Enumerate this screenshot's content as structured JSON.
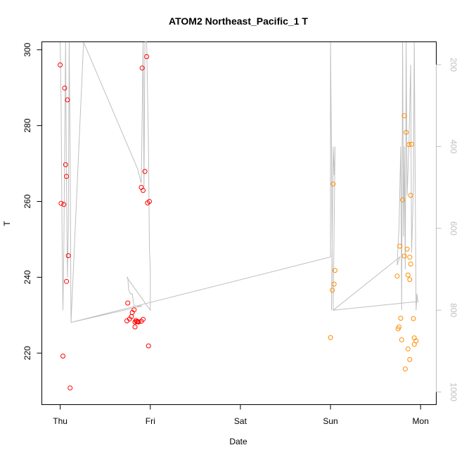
{
  "chart_data": {
    "type": "scatter",
    "title": "ATOM2 Northeast_Pacific_1 T",
    "xlabel": "Date",
    "ylabel": "T",
    "x_unit": "days since Thursday 00:00",
    "xlim": [
      -0.2,
      4.17
    ],
    "ylim": [
      206.5,
      302.0
    ],
    "x_ticks": [
      {
        "value": 0,
        "label": "Thu"
      },
      {
        "value": 1,
        "label": "Fri"
      },
      {
        "value": 2,
        "label": "Sat"
      },
      {
        "value": 3,
        "label": "Sun"
      },
      {
        "value": 4,
        "label": "Mon"
      }
    ],
    "y_ticks": [
      220,
      240,
      260,
      280,
      300
    ],
    "right_axis": {
      "lim": [
        1030,
        145
      ],
      "ticks": [
        200,
        400,
        600,
        800,
        1000
      ],
      "color": "#bfbfbf"
    },
    "grid": false,
    "series": [
      {
        "name": "",
        "color": "#ff0000",
        "points": [
          [
            0.0,
            296.0
          ],
          [
            0.05,
            289.9
          ],
          [
            0.08,
            286.8
          ],
          [
            0.06,
            269.7
          ],
          [
            0.07,
            266.6
          ],
          [
            0.01,
            259.5
          ],
          [
            0.04,
            259.2
          ],
          [
            0.09,
            245.7
          ],
          [
            0.07,
            238.9
          ],
          [
            0.03,
            219.2
          ],
          [
            0.11,
            210.8
          ],
          [
            0.75,
            233.2
          ],
          [
            0.74,
            228.5
          ],
          [
            0.77,
            229.0
          ],
          [
            0.79,
            229.6
          ],
          [
            0.8,
            230.7
          ],
          [
            0.82,
            231.4
          ],
          [
            0.83,
            228.2
          ],
          [
            0.84,
            228.6
          ],
          [
            0.85,
            228.3
          ],
          [
            0.86,
            228.3
          ],
          [
            0.87,
            228.2
          ],
          [
            0.9,
            228.4
          ],
          [
            0.83,
            226.9
          ],
          [
            0.92,
            228.9
          ],
          [
            0.91,
            295.2
          ],
          [
            0.96,
            298.2
          ],
          [
            0.94,
            267.9
          ],
          [
            0.9,
            263.7
          ],
          [
            0.92,
            262.9
          ],
          [
            0.97,
            259.6
          ],
          [
            0.99,
            260.0
          ],
          [
            0.98,
            221.9
          ]
        ]
      },
      {
        "name": "",
        "color": "#ff8c00",
        "points": [
          [
            3.03,
            264.6
          ],
          [
            3.05,
            241.8
          ],
          [
            3.04,
            238.2
          ],
          [
            3.02,
            236.6
          ],
          [
            3.0,
            224.1
          ],
          [
            3.82,
            282.6
          ],
          [
            3.84,
            278.2
          ],
          [
            3.87,
            275.0
          ],
          [
            3.9,
            275.1
          ],
          [
            3.89,
            261.6
          ],
          [
            3.8,
            260.4
          ],
          [
            3.77,
            248.2
          ],
          [
            3.85,
            247.4
          ],
          [
            3.82,
            245.6
          ],
          [
            3.88,
            245.3
          ],
          [
            3.89,
            243.5
          ],
          [
            3.74,
            240.3
          ],
          [
            3.86,
            240.6
          ],
          [
            3.88,
            239.4
          ],
          [
            3.78,
            229.2
          ],
          [
            3.92,
            229.1
          ],
          [
            3.76,
            226.9
          ],
          [
            3.75,
            226.4
          ],
          [
            3.93,
            224.0
          ],
          [
            3.95,
            223.2
          ],
          [
            3.79,
            223.5
          ],
          [
            3.93,
            222.3
          ],
          [
            3.86,
            221.1
          ],
          [
            3.88,
            218.3
          ],
          [
            3.83,
            215.8
          ]
        ]
      },
      {
        "name": "",
        "color": "#bfbfbf",
        "mode": "line",
        "axis": "right",
        "points": [
          [
            0.0,
            145
          ],
          [
            0.01,
            300
          ],
          [
            0.02,
            600
          ],
          [
            0.03,
            800
          ],
          [
            0.04,
            650
          ],
          [
            0.05,
            400
          ],
          [
            0.06,
            145
          ],
          [
            0.07,
            500
          ],
          [
            0.08,
            720
          ],
          [
            0.09,
            600
          ],
          [
            0.1,
            145
          ],
          [
            0.11,
            400
          ],
          [
            0.12,
            830
          ],
          [
            0.26,
            145
          ],
          [
            0.86,
            455
          ],
          [
            0.9,
            490
          ],
          [
            0.92,
            145
          ],
          [
            0.93,
            500
          ],
          [
            0.94,
            145
          ],
          [
            0.96,
            145
          ],
          [
            0.98,
            400
          ],
          [
            0.99,
            650
          ],
          [
            1.0,
            700
          ],
          [
            1.0,
            800
          ],
          [
            0.74,
            720
          ],
          [
            0.75,
            720
          ],
          [
            0.76,
            750
          ],
          [
            0.78,
            760
          ],
          [
            0.8,
            760
          ],
          [
            0.82,
            790
          ],
          [
            0.85,
            790
          ],
          [
            0.91,
            790
          ],
          [
            0.12,
            830
          ],
          [
            3.0,
            670
          ],
          [
            3.0,
            145
          ],
          [
            3.01,
            400
          ],
          [
            3.02,
            700
          ],
          [
            3.01,
            800
          ],
          [
            3.03,
            400
          ],
          [
            3.04,
            470
          ],
          [
            3.05,
            400
          ],
          [
            3.03,
            800
          ],
          [
            3.77,
            670
          ],
          [
            3.74,
            690
          ],
          [
            3.75,
            640
          ],
          [
            3.76,
            600
          ],
          [
            3.78,
            400
          ],
          [
            3.79,
            800
          ],
          [
            3.8,
            145
          ],
          [
            3.81,
            620
          ],
          [
            3.82,
            400
          ],
          [
            3.83,
            700
          ],
          [
            3.84,
            145
          ],
          [
            3.85,
            520
          ],
          [
            3.87,
            400
          ],
          [
            3.89,
            200
          ],
          [
            3.9,
            660
          ],
          [
            3.92,
            500
          ],
          [
            3.93,
            145
          ],
          [
            3.95,
            800
          ],
          [
            3.96,
            760
          ],
          [
            3.97,
            780
          ],
          [
            3.92,
            780
          ],
          [
            3.03,
            800
          ]
        ]
      }
    ]
  }
}
